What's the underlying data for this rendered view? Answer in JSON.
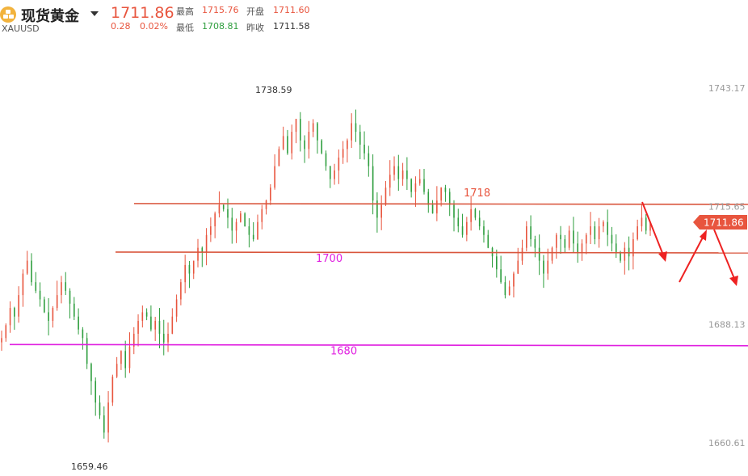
{
  "header": {
    "name": "现货黄金",
    "code": "XAUUSD",
    "price": "1711.86",
    "change": "0.28",
    "change_pct": "0.02%",
    "high_label": "最高",
    "high_value": "1715.76",
    "low_label": "最低",
    "low_value": "1708.81",
    "open_label": "开盘",
    "open_value": "1711.60",
    "prev_close_label": "昨收",
    "prev_close_value": "1711.58"
  },
  "chart_data": {
    "type": "candlestick",
    "y_ticks": [
      "1743.17",
      "1715.65",
      "1688.13",
      "1660.61"
    ],
    "y_tick_values": [
      1743.17,
      1715.65,
      1688.13,
      1660.61
    ],
    "ylim": [
      1652,
      1752
    ],
    "current_price_tag": "1711.86",
    "max_annotation": "1738.59",
    "min_annotation": "1659.46",
    "levels": [
      {
        "label": "1718",
        "value": 1716.3,
        "color": "#d9553c"
      },
      {
        "label": "1700",
        "value": 1705.0,
        "color": "#d9553c"
      },
      {
        "label": "1680",
        "value": 1683.5,
        "color": "#e020e0"
      }
    ],
    "label_colors": {
      "1718": "#e8553e",
      "1700": "#e020e0",
      "1680": "#e020e0"
    },
    "up_color": "#e8553e",
    "down_color": "#2e9e3e",
    "closes": [
      1685,
      1688,
      1692,
      1690,
      1695,
      1700,
      1703,
      1698,
      1696,
      1694,
      1691,
      1689,
      1692,
      1695,
      1698,
      1696,
      1693,
      1690,
      1687,
      1685,
      1679,
      1675,
      1670,
      1667,
      1663,
      1670,
      1676,
      1679,
      1682,
      1678,
      1683,
      1686,
      1689,
      1691,
      1690,
      1687,
      1689,
      1686,
      1684,
      1686,
      1690,
      1694,
      1698,
      1702,
      1700,
      1703,
      1706,
      1705,
      1709,
      1711,
      1714,
      1716,
      1715,
      1713,
      1710,
      1712,
      1714,
      1711,
      1709,
      1708,
      1712,
      1715,
      1717,
      1720,
      1725,
      1729,
      1732,
      1728,
      1733,
      1736,
      1731,
      1729,
      1733,
      1735,
      1731,
      1728,
      1725,
      1722,
      1724,
      1727,
      1729,
      1731,
      1735,
      1733,
      1730,
      1728,
      1725,
      1717,
      1713,
      1716,
      1720,
      1723,
      1725,
      1722,
      1724,
      1722,
      1719,
      1721,
      1722,
      1719,
      1716,
      1714,
      1717,
      1720,
      1719,
      1716,
      1713,
      1711,
      1709,
      1712,
      1715,
      1713,
      1711,
      1709,
      1706,
      1704,
      1701,
      1698,
      1695,
      1697,
      1700,
      1703,
      1706,
      1711,
      1708,
      1706,
      1703,
      1700,
      1703,
      1706,
      1709,
      1708,
      1706,
      1710,
      1707,
      1705,
      1707,
      1709,
      1711,
      1708,
      1711,
      1712,
      1709,
      1707,
      1705,
      1703,
      1706,
      1704,
      1708,
      1711,
      1713,
      1710,
      1712
    ],
    "arrows_count": 3
  }
}
